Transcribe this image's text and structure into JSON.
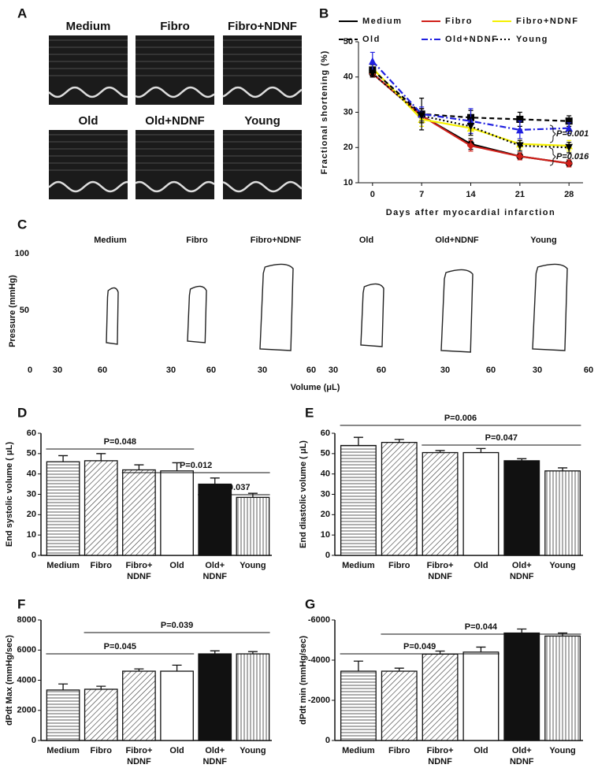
{
  "panels": [
    "A",
    "B",
    "C",
    "D",
    "E",
    "F",
    "G"
  ],
  "echo": {
    "labels": [
      "Medium",
      "Fibro",
      "Fibro+NDNF",
      "Old",
      "Old+NDNF",
      "Young"
    ]
  },
  "pv_loops": {
    "labels": [
      "Medium",
      "Fibro",
      "Fibro+NDNF",
      "Old",
      "Old+NDNF",
      "Young"
    ],
    "y_label": "Pressure (mmHg)",
    "x_label": "Volume (μL)",
    "yticks": [
      100,
      50
    ],
    "xtick_labels": [
      "0",
      "30",
      "60",
      "30",
      "60",
      "30",
      "60",
      "30",
      "60",
      "30",
      "60",
      "30",
      "60"
    ]
  },
  "chart_data": [
    {
      "type": "line",
      "x_label": "Days after myocardial infarction",
      "y_label": "Fractional shortening (%)",
      "x": [
        0,
        7,
        14,
        21,
        28
      ],
      "xlim": [
        -2,
        30
      ],
      "xticks": [
        0,
        7,
        14,
        21,
        28
      ],
      "ylim": [
        10,
        50
      ],
      "yticks": [
        10,
        20,
        30,
        40,
        50
      ],
      "grid": false,
      "series": [
        {
          "name": "Medium",
          "color": "#000000",
          "style": "solid",
          "values": [
            41,
            29,
            21,
            17.5,
            15.5
          ],
          "errors": [
            1,
            2,
            1.5,
            1,
            1
          ]
        },
        {
          "name": "Fibro",
          "color": "#d0201a",
          "style": "solid",
          "values": [
            41,
            29,
            20.5,
            17.5,
            15.5
          ],
          "errors": [
            1,
            2,
            1.5,
            1,
            1
          ]
        },
        {
          "name": "Fibro+NDNF",
          "color": "#f5f000",
          "style": "solid",
          "values": [
            42.5,
            28,
            25.5,
            21,
            20.5
          ],
          "errors": [
            1.5,
            2,
            2,
            1.5,
            1.5
          ]
        },
        {
          "name": "Old",
          "color": "#000000",
          "style": "dashed",
          "values": [
            42,
            29.5,
            28.5,
            28,
            27.5
          ],
          "errors": [
            1.5,
            4.5,
            2,
            2,
            1.5
          ]
        },
        {
          "name": "Old+NDNF",
          "color": "#2020e0",
          "style": "dashdot",
          "values": [
            44.5,
            29.5,
            27.5,
            25,
            25.5
          ],
          "errors": [
            2.5,
            2,
            3.5,
            2.5,
            1.5
          ]
        },
        {
          "name": "Young",
          "color": "#000000",
          "style": "dotted",
          "values": [
            41,
            29,
            26,
            20.5,
            20
          ],
          "errors": [
            1,
            2,
            2.5,
            1.5,
            1.5
          ]
        }
      ],
      "annotations": [
        "P=0.001",
        "P=0.016"
      ]
    },
    {
      "type": "bar",
      "y_label": "End systolic volume ( μL)",
      "categories": [
        "Medium",
        "Fibro",
        "Fibro+\nNDNF",
        "Old",
        "Old+\nNDNF",
        "Young"
      ],
      "values": [
        46,
        46.5,
        42,
        41.5,
        35,
        28.5
      ],
      "errors": [
        3,
        3.5,
        2.5,
        4,
        3,
        2
      ],
      "ylim": [
        0,
        60
      ],
      "yticks": [
        0,
        10,
        20,
        30,
        40,
        50,
        60
      ],
      "annotations": [
        "P=0.048",
        "P=0.012",
        "P=0.037"
      ]
    },
    {
      "type": "bar",
      "y_label": "End diastolic volume ( μL)",
      "categories": [
        "Medium",
        "Fibro",
        "Fibro+\nNDNF",
        "Old",
        "Old+\nNDNF",
        "Young"
      ],
      "values": [
        54,
        55.5,
        50.5,
        50.5,
        46.5,
        41.5
      ],
      "errors": [
        4,
        1.5,
        1,
        2,
        1,
        1.5
      ],
      "ylim": [
        0,
        60
      ],
      "yticks": [
        0,
        10,
        20,
        30,
        40,
        50,
        60
      ],
      "annotations": [
        "P=0.006",
        "P=0.047"
      ]
    },
    {
      "type": "bar",
      "y_label": "dPdt Max (mmHg/sec)",
      "categories": [
        "Medium",
        "Fibro",
        "Fibro+\nNDNF",
        "Old",
        "Old+\nNDNF",
        "Young"
      ],
      "values": [
        3350,
        3400,
        4600,
        4600,
        5750,
        5750
      ],
      "errors": [
        400,
        200,
        150,
        400,
        200,
        150
      ],
      "ylim": [
        0,
        8000
      ],
      "yticks": [
        0,
        2000,
        4000,
        6000,
        8000
      ],
      "annotations": [
        "P=0.045",
        "P=0.039"
      ]
    },
    {
      "type": "bar",
      "y_label": "dPdt min (mmHg/sec)",
      "categories": [
        "Medium",
        "Fibro",
        "Fibro+\nNDNF",
        "Old",
        "Old+\nNDNF",
        "Young"
      ],
      "values": [
        -3450,
        -3450,
        -4300,
        -4400,
        -5350,
        -5200
      ],
      "errors": [
        500,
        150,
        150,
        250,
        200,
        150
      ],
      "ylim": [
        0,
        -6000
      ],
      "yticks": [
        0,
        -2000,
        -4000,
        -6000
      ],
      "annotations": [
        "P=0.049",
        "P=0.044"
      ]
    }
  ]
}
